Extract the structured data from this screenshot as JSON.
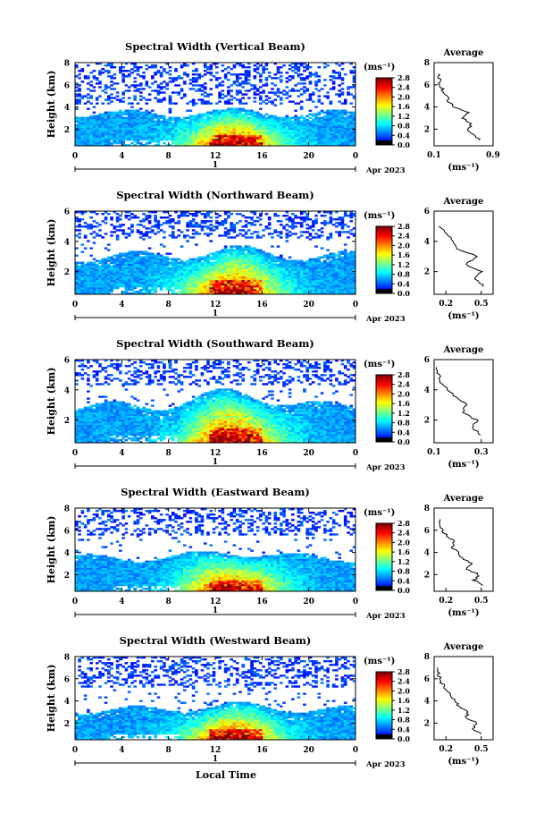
{
  "figure": {
    "date_label": "Apr 2023",
    "day_label": "1",
    "xlabel_bottom": "Local Time",
    "ylabel": "Height (km)",
    "unit_label": "(ms⁻¹)",
    "avg_title": "Average",
    "avg_xlabel": "(ms⁻¹)"
  },
  "colorbar": {
    "ticks": [
      "0.0",
      "0.4",
      "0.8",
      "1.2",
      "1.6",
      "2.0",
      "2.4",
      "2.8"
    ],
    "range": [
      0,
      2.8
    ],
    "colors": [
      "#00007f",
      "#0000ff",
      "#007fff",
      "#00ffff",
      "#7fff7f",
      "#ffff00",
      "#ff7f00",
      "#ff0000",
      "#7f0000"
    ]
  },
  "chart_data": [
    {
      "type": "heatmap",
      "title": "Spectral Width (Vertical Beam)",
      "xlabel": "",
      "ylabel": "Height (km)",
      "xlim": [
        0,
        24
      ],
      "ylim": [
        0.5,
        8
      ],
      "x_ticks": [
        "0",
        "4",
        "8",
        "12",
        "16",
        "20",
        "0"
      ],
      "y_ticks": [
        "2",
        "4",
        "6",
        "8"
      ],
      "colorbar_label": "(ms⁻¹)",
      "seed": 11,
      "layer_top": 3.4,
      "hump_top": 3.0,
      "dense_top": 5.5,
      "profile": {
        "title": "Average",
        "xlabel": "(ms⁻¹)",
        "x_ticks": [
          "0.1",
          "0.9"
        ],
        "xlim": [
          0.1,
          0.9
        ],
        "ylim": [
          0.5,
          8
        ],
        "y_ticks": [
          "2",
          "4",
          "6",
          "8"
        ],
        "heights": [
          1.0,
          1.5,
          2.0,
          2.5,
          3.0,
          3.5,
          4.0,
          4.5,
          5.0,
          5.5,
          6.0,
          6.5,
          7.0
        ],
        "values": [
          0.72,
          0.65,
          0.55,
          0.62,
          0.48,
          0.55,
          0.38,
          0.3,
          0.27,
          0.22,
          0.18,
          0.17,
          0.16
        ]
      }
    },
    {
      "type": "heatmap",
      "title": "Spectral Width (Northward Beam)",
      "xlabel": "",
      "ylabel": "Height (km)",
      "xlim": [
        0,
        24
      ],
      "ylim": [
        0.5,
        6
      ],
      "x_ticks": [
        "0",
        "4",
        "8",
        "12",
        "16",
        "20",
        "0"
      ],
      "y_ticks": [
        "2",
        "4",
        "6"
      ],
      "colorbar_label": "(ms⁻¹)",
      "seed": 23,
      "layer_top": 3.0,
      "hump_top": 2.8,
      "dense_top": 5.4,
      "profile": {
        "title": "Average",
        "xlabel": "(ms⁻¹)",
        "x_ticks": [
          "0.2",
          "0.5"
        ],
        "xlim": [
          0.1,
          0.6
        ],
        "ylim": [
          0.5,
          6
        ],
        "y_ticks": [
          "2",
          "4",
          "6"
        ],
        "heights": [
          1.0,
          1.5,
          2.0,
          2.5,
          3.0,
          3.5,
          4.0,
          4.5,
          5.0
        ],
        "values": [
          0.52,
          0.45,
          0.5,
          0.36,
          0.47,
          0.3,
          0.26,
          0.2,
          0.14
        ]
      }
    },
    {
      "type": "heatmap",
      "title": "Spectral Width (Southward Beam)",
      "xlabel": "",
      "ylabel": "Height (km)",
      "xlim": [
        0,
        24
      ],
      "ylim": [
        0.5,
        6
      ],
      "x_ticks": [
        "0",
        "4",
        "8",
        "12",
        "16",
        "20",
        "0"
      ],
      "y_ticks": [
        "2",
        "4",
        "6"
      ],
      "colorbar_label": "(ms⁻¹)",
      "seed": 37,
      "layer_top": 2.9,
      "hump_top": 3.2,
      "dense_top": 5.5,
      "profile": {
        "title": "Average",
        "xlabel": "(ms⁻¹)",
        "x_ticks": [
          "0.1",
          "0.3"
        ],
        "xlim": [
          0.1,
          0.35
        ],
        "ylim": [
          0.5,
          6
        ],
        "y_ticks": [
          "2",
          "4",
          "6"
        ],
        "heights": [
          1.0,
          1.5,
          2.0,
          2.5,
          3.0,
          3.5,
          4.0,
          4.5,
          5.0,
          5.5
        ],
        "values": [
          0.3,
          0.26,
          0.28,
          0.22,
          0.24,
          0.19,
          0.16,
          0.13,
          0.12,
          0.11
        ]
      }
    },
    {
      "type": "heatmap",
      "title": "Spectral Width (Eastward Beam)",
      "xlabel": "",
      "ylabel": "Height (km)",
      "xlim": [
        0,
        24
      ],
      "ylim": [
        0.5,
        8
      ],
      "x_ticks": [
        "0",
        "4",
        "8",
        "12",
        "16",
        "20",
        "0"
      ],
      "y_ticks": [
        "2",
        "4",
        "6",
        "8"
      ],
      "colorbar_label": "(ms⁻¹)",
      "seed": 51,
      "layer_top": 3.5,
      "hump_top": 3.4,
      "dense_top": 6.8,
      "profile": {
        "title": "Average",
        "xlabel": "(ms⁻¹)",
        "x_ticks": [
          "0.2",
          "0.5"
        ],
        "xlim": [
          0.1,
          0.6
        ],
        "ylim": [
          0.5,
          8
        ],
        "y_ticks": [
          "2",
          "4",
          "6",
          "8"
        ],
        "heights": [
          1.0,
          1.5,
          2.0,
          2.5,
          3.0,
          3.5,
          4.0,
          4.5,
          5.0,
          5.5,
          6.0,
          6.5,
          7.0
        ],
        "values": [
          0.52,
          0.44,
          0.48,
          0.38,
          0.42,
          0.34,
          0.3,
          0.25,
          0.28,
          0.21,
          0.17,
          0.16,
          0.15
        ]
      }
    },
    {
      "type": "heatmap",
      "title": "Spectral Width (Westward Beam)",
      "xlabel": "Local Time",
      "ylabel": "Height (km)",
      "xlim": [
        0,
        24
      ],
      "ylim": [
        0.5,
        8
      ],
      "x_ticks": [
        "0",
        "4",
        "8",
        "12",
        "16",
        "20",
        "0"
      ],
      "y_ticks": [
        "2",
        "4",
        "6",
        "8"
      ],
      "colorbar_label": "(ms⁻¹)",
      "seed": 67,
      "layer_top": 3.2,
      "hump_top": 3.0,
      "dense_top": 6.5,
      "profile": {
        "title": "Average",
        "xlabel": "(ms⁻¹)",
        "x_ticks": [
          "0.2",
          "0.5"
        ],
        "xlim": [
          0.1,
          0.6
        ],
        "ylim": [
          0.5,
          8
        ],
        "y_ticks": [
          "2",
          "4",
          "6",
          "8"
        ],
        "heights": [
          1.0,
          1.5,
          2.0,
          2.5,
          3.0,
          3.5,
          4.0,
          4.5,
          5.0,
          5.5,
          6.0,
          6.5,
          7.0
        ],
        "values": [
          0.5,
          0.42,
          0.47,
          0.36,
          0.4,
          0.31,
          0.27,
          0.24,
          0.2,
          0.17,
          0.15,
          0.14,
          0.13
        ]
      }
    }
  ]
}
